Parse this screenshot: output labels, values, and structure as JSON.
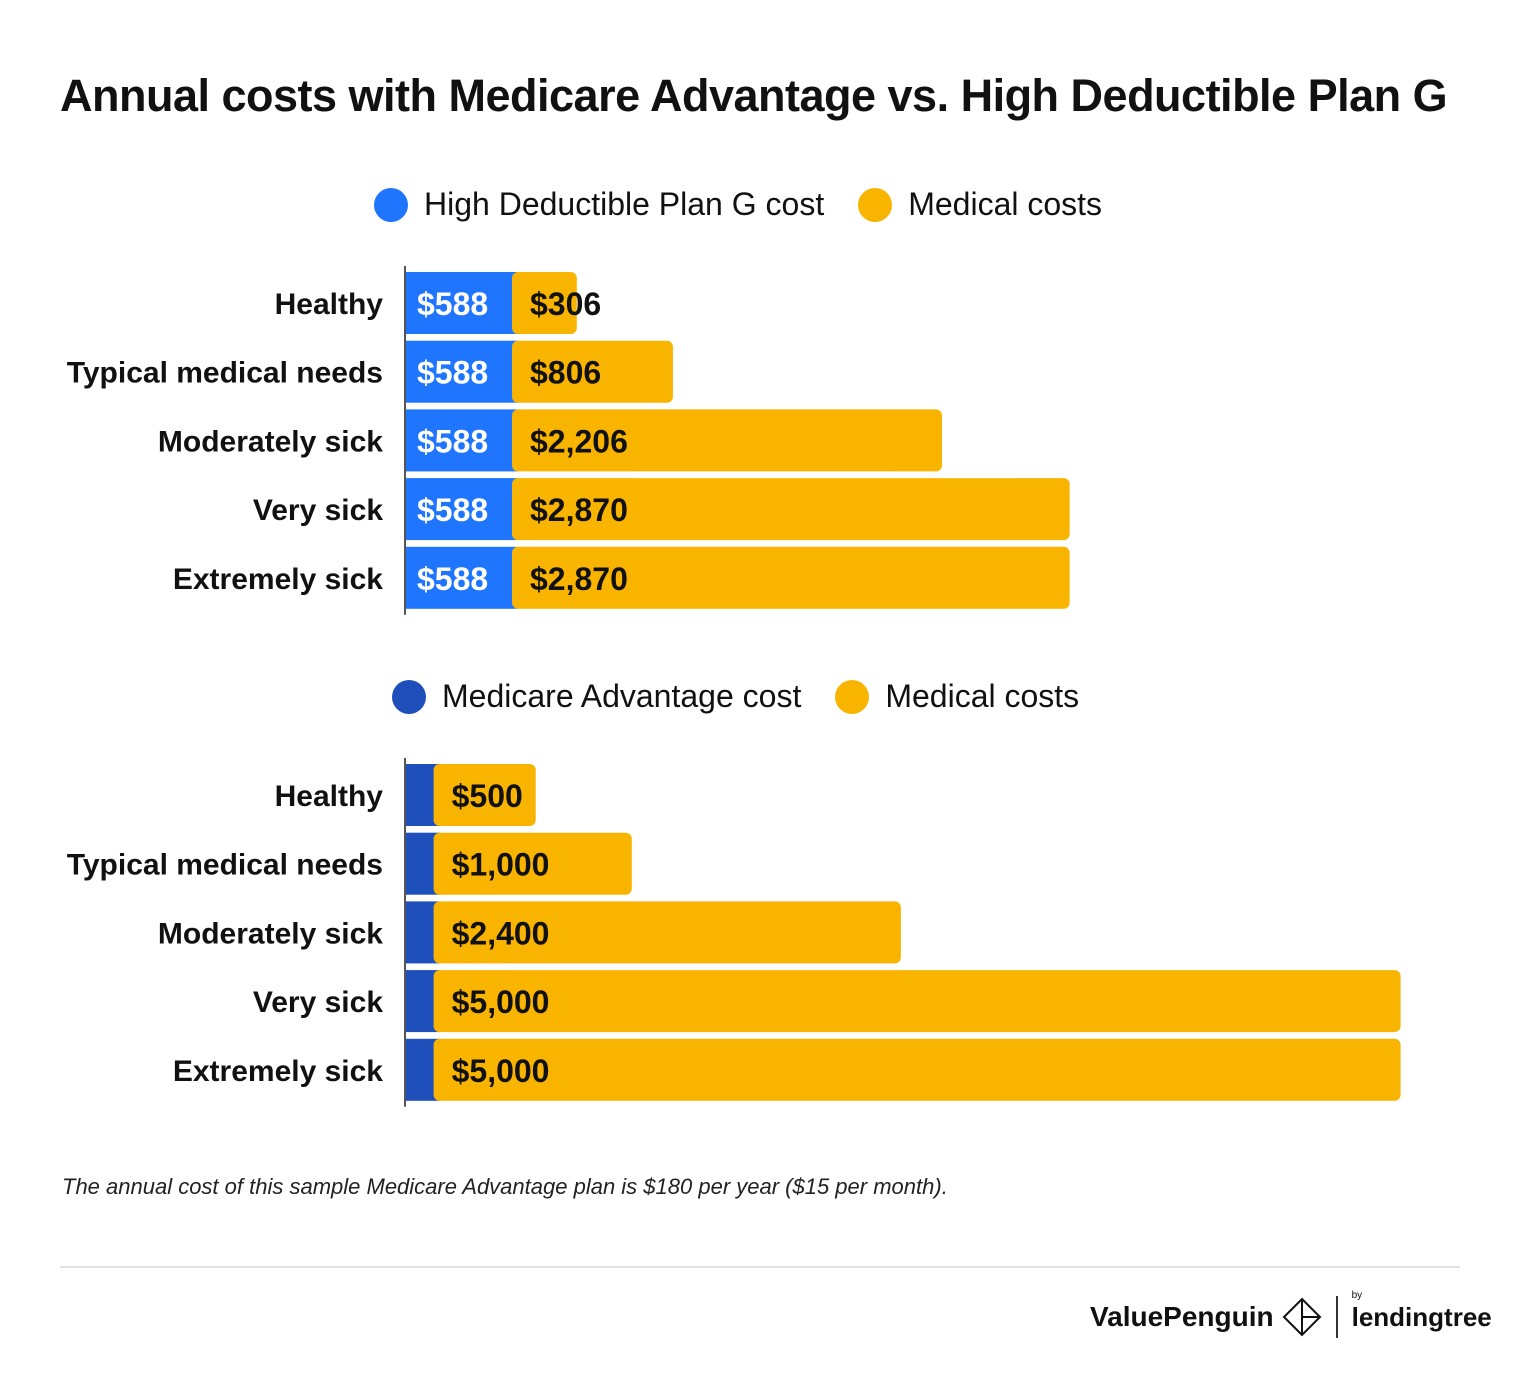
{
  "chart_data": [
    {
      "type": "bar",
      "stacked": true,
      "orientation": "horizontal",
      "title": "Annual costs with Medicare Advantage vs. High Deductible Plan G",
      "categories": [
        "Healthy",
        "Typical medical needs",
        "Moderately sick",
        "Very sick",
        "Extremely sick"
      ],
      "series": [
        {
          "name": "High Deductible Plan G cost",
          "color": "#1f75fe",
          "values": [
            588,
            588,
            588,
            588,
            588
          ],
          "labels": [
            "$588",
            "$588",
            "$588",
            "$588",
            "$588"
          ]
        },
        {
          "name": "Medical costs",
          "color": "#f9b400",
          "values": [
            306,
            806,
            2206,
            2870,
            2870
          ],
          "labels": [
            "$306",
            "$806",
            "$2,206",
            "$2,870",
            "$2,870"
          ]
        }
      ],
      "legend": "top"
    },
    {
      "type": "bar",
      "stacked": true,
      "orientation": "horizontal",
      "categories": [
        "Healthy",
        "Typical medical needs",
        "Moderately sick",
        "Very sick",
        "Extremely sick"
      ],
      "series": [
        {
          "name": "Medicare Advantage cost",
          "color": "#1e4fba",
          "values": [
            180,
            180,
            180,
            180,
            180
          ],
          "labels": [
            "",
            "",
            "",
            "",
            ""
          ]
        },
        {
          "name": "Medical costs",
          "color": "#f9b400",
          "values": [
            500,
            1000,
            2400,
            5000,
            5000
          ],
          "labels": [
            "$500",
            "$1,000",
            "$2,400",
            "$5,000",
            "$5,000"
          ]
        }
      ],
      "legend": "top"
    }
  ],
  "note": "The annual cost of this sample Medicare Advantage plan is $180 per year ($15 per month).",
  "brand": {
    "name": "ValuePenguin",
    "by": "by",
    "partner": "lendingtree"
  }
}
